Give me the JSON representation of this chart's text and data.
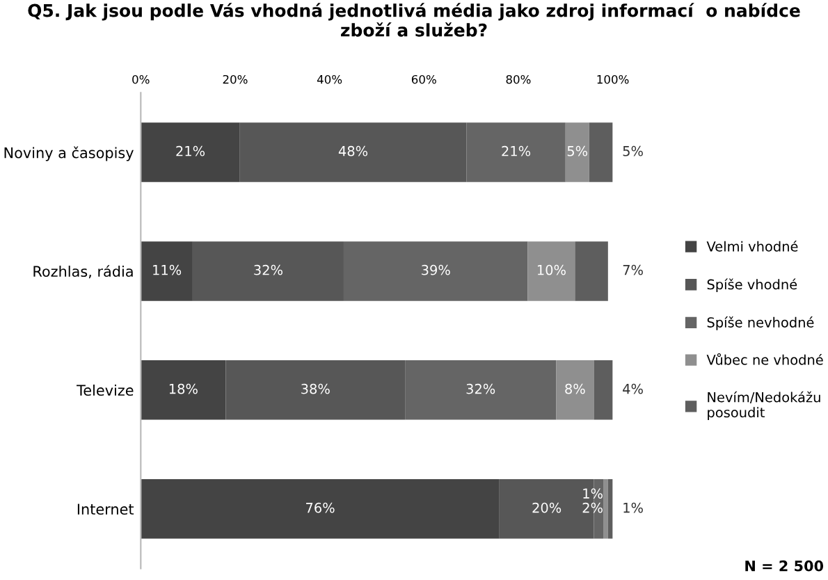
{
  "chart_data": {
    "type": "bar",
    "orientation": "horizontal",
    "stacked": true,
    "title": "Q5. Jak jsou podle Vás vhodná jednotlivá média jako zdroj informací  o nabídce zboží a služeb?",
    "categories": [
      "Noviny a časopisy",
      "Rozhlas, rádia",
      "Televize",
      "Internet"
    ],
    "series": [
      {
        "name": "Velmi vhodné",
        "color": "#444444",
        "values": [
          21,
          11,
          18,
          76
        ],
        "value_labels": [
          "21%",
          "11%",
          "18%",
          "76%"
        ]
      },
      {
        "name": "Spíše vhodné",
        "color": "#575757",
        "values": [
          48,
          32,
          38,
          20
        ],
        "value_labels": [
          "48%",
          "32%",
          "38%",
          "20%"
        ]
      },
      {
        "name": "Spíše nevhodné",
        "color": "#656565",
        "values": [
          21,
          39,
          32,
          2
        ],
        "value_labels": [
          "21%",
          "39%",
          "32%",
          "2%"
        ]
      },
      {
        "name": "Vůbec ne vhodné",
        "color": "#8f8f8f",
        "values": [
          5,
          10,
          8,
          1
        ],
        "value_labels": [
          "5%",
          "10%",
          "8%",
          "1%"
        ]
      },
      {
        "name": "Nevím/Nedokážu posoudit",
        "color": "#5e5e5e",
        "values": [
          5,
          7,
          4,
          1
        ],
        "value_labels": [
          "5%",
          "7%",
          "4%",
          "1%"
        ]
      }
    ],
    "xlim": [
      0,
      100
    ],
    "xticks": [
      {
        "value": 0,
        "label": "0%"
      },
      {
        "value": 20,
        "label": "20%"
      },
      {
        "value": 40,
        "label": "40%"
      },
      {
        "value": 60,
        "label": "60%"
      },
      {
        "value": 80,
        "label": "80%"
      },
      {
        "value": 100,
        "label": "100%"
      }
    ],
    "grid": false,
    "legend": "right",
    "annotations": [
      "N = 2 500"
    ]
  }
}
